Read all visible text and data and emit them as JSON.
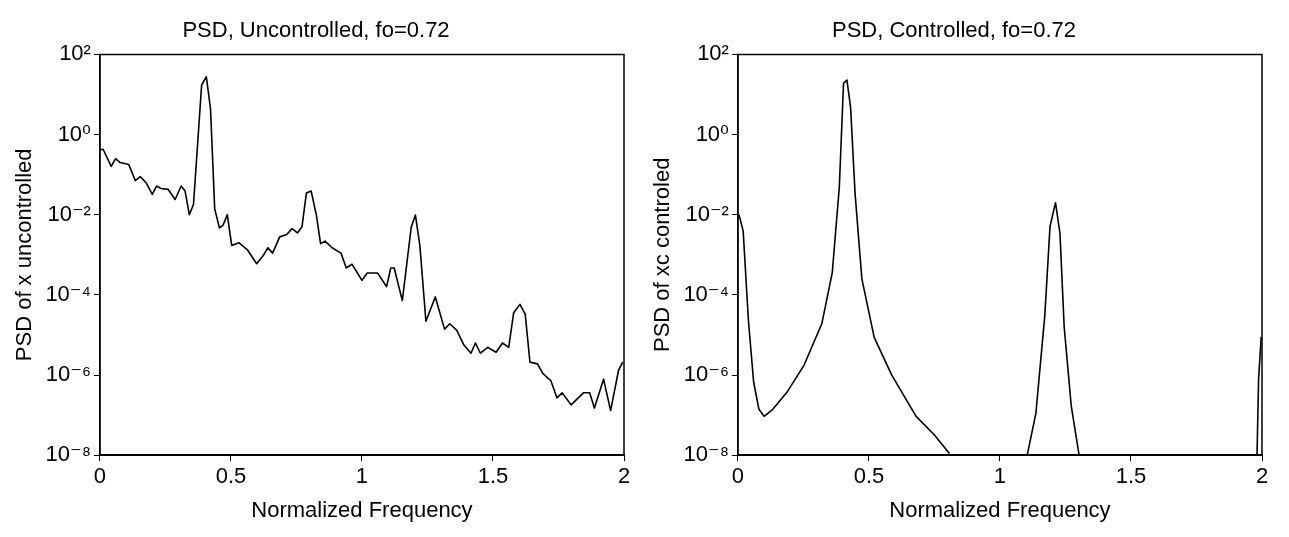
{
  "chart_data": [
    {
      "type": "line",
      "title": "PSD, Uncontrolled, fo=0.72",
      "xlabel": "Normalized Frequency",
      "ylabel": "PSD of x uncontrolled",
      "log": "y",
      "xlim": [
        0,
        2
      ],
      "xticks": [
        0,
        0.5,
        1,
        1.5,
        2
      ],
      "ylim": [
        1e-08,
        100
      ],
      "yticks": [
        {
          "value": 1e-08,
          "label": "10⁻⁸"
        },
        {
          "value": 1e-06,
          "label": "10⁻⁶"
        },
        {
          "value": 0.0001,
          "label": "10⁻⁴"
        },
        {
          "value": 0.01,
          "label": "10⁻²"
        },
        {
          "value": 1,
          "label": "10⁰"
        },
        {
          "value": 100,
          "label": "10²"
        }
      ],
      "x": [
        0,
        0.012,
        0.043,
        0.06,
        0.077,
        0.11,
        0.135,
        0.154,
        0.176,
        0.2,
        0.216,
        0.233,
        0.26,
        0.287,
        0.31,
        0.325,
        0.341,
        0.357,
        0.388,
        0.406,
        0.422,
        0.438,
        0.456,
        0.47,
        0.486,
        0.503,
        0.53,
        0.564,
        0.598,
        0.622,
        0.641,
        0.659,
        0.686,
        0.713,
        0.733,
        0.754,
        0.771,
        0.788,
        0.806,
        0.826,
        0.842,
        0.859,
        0.886,
        0.92,
        0.94,
        0.962,
        1.0,
        1.02,
        1.06,
        1.094,
        1.11,
        1.123,
        1.154,
        1.188,
        1.204,
        1.221,
        1.244,
        1.28,
        1.315,
        1.335,
        1.362,
        1.389,
        1.416,
        1.433,
        1.452,
        1.48,
        1.512,
        1.536,
        1.56,
        1.579,
        1.603,
        1.623,
        1.641,
        1.67,
        1.69,
        1.721,
        1.744,
        1.764,
        1.798,
        1.845,
        1.869,
        1.887,
        1.922,
        1.949,
        1.979,
        1.995
      ],
      "series": [
        {
          "color": "#000000",
          "values": [
            0.41,
            0.43,
            0.16,
            0.25,
            0.2,
            0.18,
            0.071,
            0.089,
            0.063,
            0.032,
            0.052,
            0.045,
            0.043,
            0.024,
            0.052,
            0.039,
            0.01,
            0.018,
            17.0,
            28.0,
            4.4,
            0.014,
            0.0047,
            0.0055,
            0.01,
            0.0017,
            0.002,
            0.0013,
            0.0006,
            0.00093,
            0.0015,
            0.0011,
            0.0028,
            0.0032,
            0.0045,
            0.0035,
            0.005,
            0.035,
            0.039,
            0.0098,
            0.0019,
            0.0022,
            0.0015,
            0.0011,
            0.00047,
            0.00058,
            0.00023,
            0.00035,
            0.00035,
            0.00016,
            0.00047,
            0.00047,
            7.2e-05,
            0.0049,
            0.0098,
            0.0017,
            2.2e-05,
            8.9e-05,
            1.4e-05,
            1.9e-05,
            1.3e-05,
            5.6e-06,
            3.5e-06,
            6.3e-06,
            3.5e-06,
            4.9e-06,
            3.7e-06,
            6.3e-06,
            4.9e-06,
            3.6e-05,
            5.8e-05,
            3.3e-05,
            2.1e-06,
            1.9e-06,
            1.1e-06,
            7.2e-07,
            2.7e-07,
            3.6e-07,
            1.8e-07,
            3.6e-07,
            3.6e-07,
            1.5e-07,
            7.9e-07,
            1.3e-07,
            1.3e-06,
            2.1e-06
          ]
        }
      ]
    },
    {
      "type": "line",
      "title": "PSD, Controlled, fo=0.72",
      "xlabel": "Normalized Frequency",
      "ylabel": "PSD of xc controled",
      "log": "y",
      "xlim": [
        0,
        2
      ],
      "xticks": [
        0,
        0.5,
        1,
        1.5,
        2
      ],
      "ylim": [
        1e-08,
        100
      ],
      "yticks": [
        {
          "value": 1e-08,
          "label": "10⁻⁸"
        },
        {
          "value": 1e-06,
          "label": "10⁻⁶"
        },
        {
          "value": 0.0001,
          "label": "10⁻⁴"
        },
        {
          "value": 0.01,
          "label": "10⁻²"
        },
        {
          "value": 1,
          "label": "10⁰"
        },
        {
          "value": 100,
          "label": "10²"
        }
      ],
      "x": [
        0,
        0.007,
        0.02,
        0.04,
        0.06,
        0.08,
        0.1,
        0.133,
        0.187,
        0.253,
        0.32,
        0.36,
        0.387,
        0.403,
        0.416,
        0.43,
        0.447,
        0.473,
        0.52,
        0.587,
        0.68,
        0.75,
        0.807,
        0.9,
        1.104,
        1.137,
        1.171,
        1.191,
        1.212,
        1.229,
        1.245,
        1.272,
        1.302,
        1.6,
        1.981,
        1.987,
        1.997
      ],
      "series": [
        {
          "color": "#000000",
          "values": [
            0.011,
            0.0085,
            0.0039,
            2.3e-05,
            6.6e-07,
            1.4e-07,
            9.3e-08,
            1.4e-07,
            3.7e-07,
            1.8e-06,
            1.9e-05,
            0.00036,
            0.05,
            19.0,
            23.0,
            4.7,
            0.034,
            0.00025,
            8.7e-06,
            1e-06,
            9.3e-08,
            3.2e-08,
            1.1e-08,
            null,
            1e-08,
            1.1e-07,
            3e-05,
            0.0051,
            0.02,
            0.0034,
            1.6e-05,
            1.7e-07,
            1e-08,
            null,
            1e-08,
            8.1e-07,
            8.9e-06
          ]
        }
      ]
    }
  ]
}
